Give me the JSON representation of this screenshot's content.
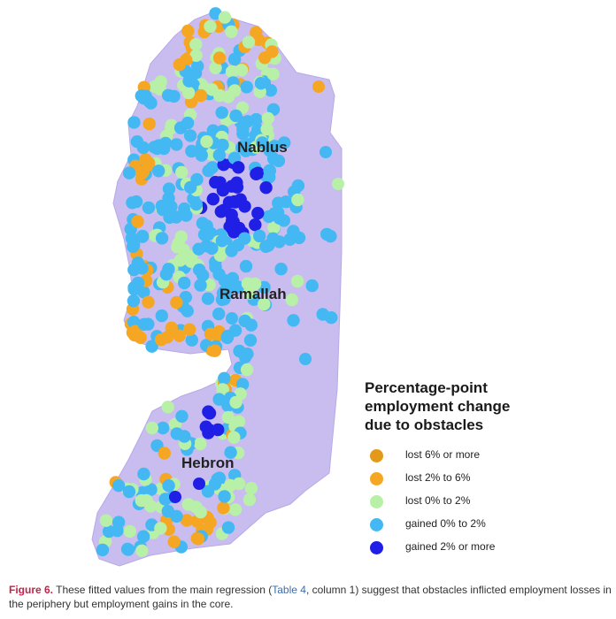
{
  "map": {
    "region_color": "#c9bdf0",
    "cities": [
      {
        "id": "nablus",
        "name": "Nablus"
      },
      {
        "id": "ramallah",
        "name": "Ramallah"
      },
      {
        "id": "hebron",
        "name": "Hebron"
      }
    ]
  },
  "legend": {
    "title": "Percentage-point\nemployment change\ndue to obstacles",
    "items": [
      {
        "label": "lost 6% or more",
        "color": "#e39a1a"
      },
      {
        "label": "lost 2% to 6%",
        "color": "#f5a623"
      },
      {
        "label": "lost 0% to 2%",
        "color": "#b8f0a8"
      },
      {
        "label": "gained 0% to 2%",
        "color": "#43b8f2"
      },
      {
        "label": "gained 2% or more",
        "color": "#1f1fe6"
      }
    ]
  },
  "caption": {
    "fig_number": "Figure 6.",
    "text_before": " These fitted values from the main regression (",
    "ref_table": "Table 4",
    "text_after": ", column 1) suggest that obstacles inflicted employment losses in the periphery but employment gains in the core."
  }
}
